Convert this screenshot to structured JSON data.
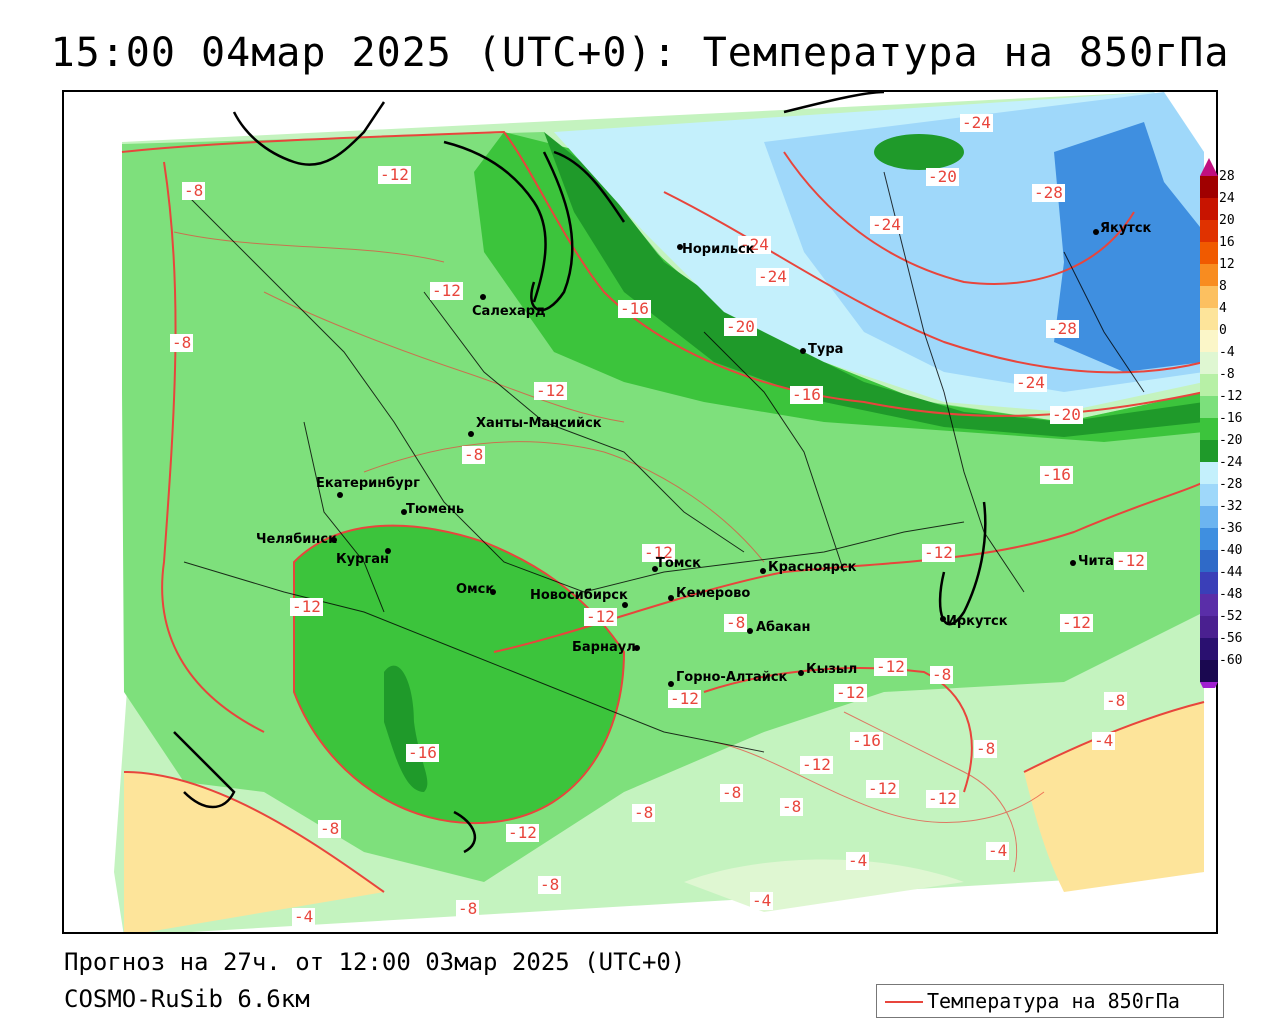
{
  "title": "15:00 04мар 2025 (UTC+0): Температура на 850гПа",
  "footer": {
    "forecast": "Прогноз на 27ч. от 12:00 03мар 2025 (UTC+0)",
    "model": "COSMO-RuSib 6.6км"
  },
  "legend": {
    "label": "Температура на 850гПа",
    "color": "#e8453c"
  },
  "colorbar": {
    "ticks": [
      "28",
      "24",
      "20",
      "16",
      "12",
      "8",
      "4",
      "0",
      "-4",
      "-8",
      "-12",
      "-16",
      "-20",
      "-24",
      "-28",
      "-32",
      "-36",
      "-40",
      "-44",
      "-48",
      "-52",
      "-56",
      "-60"
    ],
    "colors": [
      "#a00000",
      "#c81400",
      "#e03200",
      "#f05a00",
      "#f88c20",
      "#fcc060",
      "#fde49a",
      "#fbf6c8",
      "#dff7d2",
      "#b7f0a6",
      "#7ce07c",
      "#3cc43c",
      "#1f9a2a",
      "#c4f0fc",
      "#9fd8fa",
      "#6cb4f0",
      "#3f8fe0",
      "#2f6ac8",
      "#3a3fb8",
      "#5a2ea8",
      "#4a2090",
      "#2a1070",
      "#1a0850"
    ]
  },
  "contour_labels": [
    "-24",
    "-20",
    "-28",
    "-24",
    "-12",
    "-8",
    "-24",
    "-24",
    "-12",
    "-16",
    "-20",
    "-8",
    "-28",
    "-12",
    "-16",
    "-24",
    "-20",
    "-8",
    "-16",
    "-12",
    "-12",
    "-12",
    "-12",
    "-12",
    "-12",
    "-8",
    "-12",
    "-8",
    "-12",
    "-12",
    "-8",
    "-16",
    "-8",
    "-4",
    "-16",
    "-12",
    "-12",
    "-8",
    "-8",
    "-12",
    "-8",
    "-12",
    "-8",
    "-4",
    "-4",
    "-8",
    "-4",
    "-8",
    "-4"
  ],
  "cities": [
    "Норильск",
    "Якутск",
    "Салехард",
    "Тура",
    "Ханты-Мансийск",
    "Екатеринбург",
    "Тюмень",
    "Челябинск",
    "Курган",
    "Омск",
    "Новосибирск",
    "Томск",
    "Красноярск",
    "Кемерово",
    "Барнаул",
    "Абакан",
    "Иркутск",
    "Чита",
    "Горно-Алтайск",
    "Кызыл"
  ]
}
